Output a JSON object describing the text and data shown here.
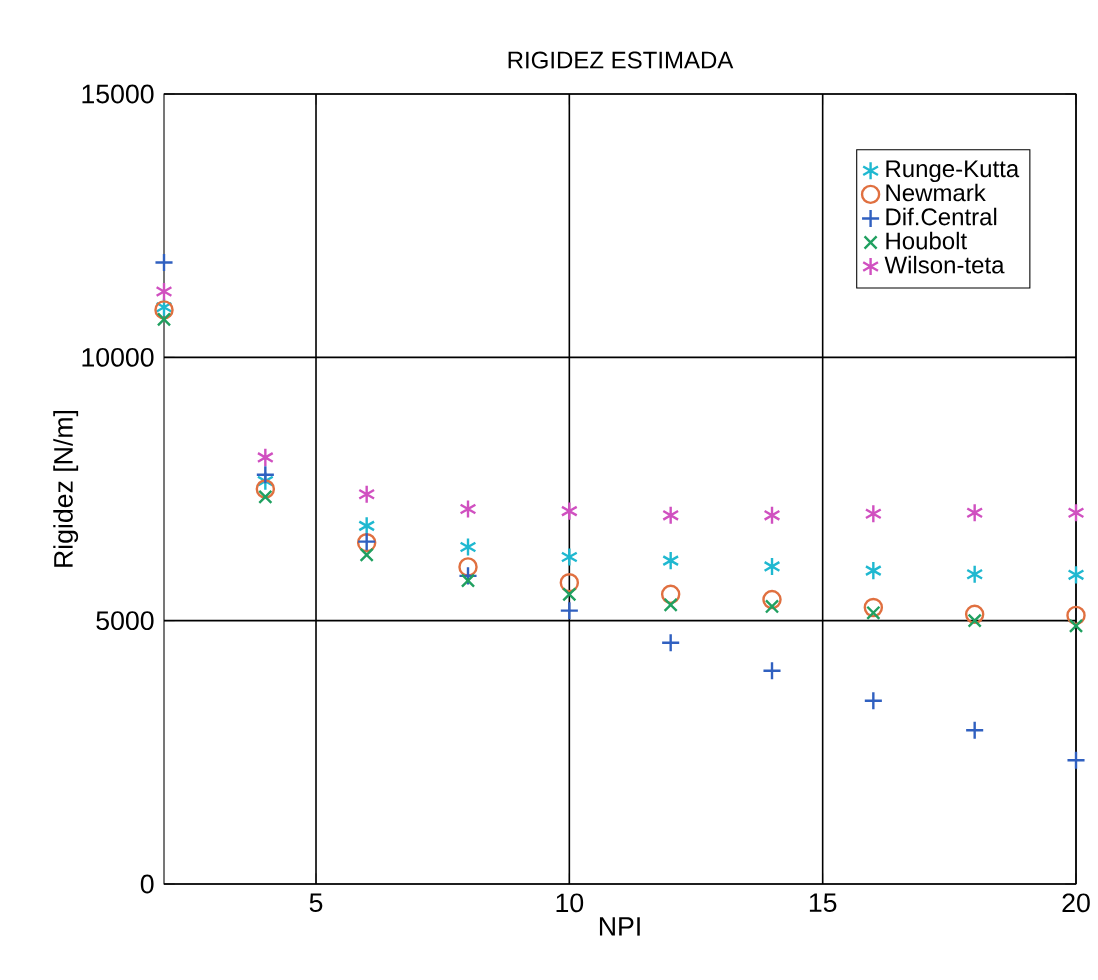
{
  "chart_data": {
    "type": "scatter",
    "title": "RIGIDEZ ESTIMADA",
    "xlabel": "NPI",
    "ylabel": "Rigidez [N/m]",
    "x": [
      2,
      4,
      6,
      8,
      10,
      12,
      14,
      16,
      18,
      20
    ],
    "series": [
      {
        "name": "Runge-Kutta",
        "color": "#1fb8d0",
        "marker": "cross",
        "values": [
          10950,
          7650,
          6800,
          6400,
          6210,
          6140,
          6030,
          5950,
          5880,
          5870
        ]
      },
      {
        "name": "Newmark",
        "color": "#e07040",
        "marker": "circle",
        "values": [
          10900,
          7500,
          6480,
          6020,
          5720,
          5500,
          5400,
          5250,
          5120,
          5100
        ]
      },
      {
        "name": "Dif.Central",
        "color": "#3060c0",
        "marker": "plus",
        "values": [
          11800,
          7770,
          6500,
          5850,
          5190,
          4580,
          4050,
          3480,
          2920,
          2350
        ]
      },
      {
        "name": "Houbolt",
        "color": "#20a060",
        "marker": "x",
        "values": [
          10720,
          7350,
          6250,
          5760,
          5500,
          5300,
          5270,
          5150,
          5000,
          4900
        ]
      },
      {
        "name": "Wilson-teta",
        "color": "#d050c0",
        "marker": "cross",
        "values": [
          11250,
          8100,
          7400,
          7120,
          7080,
          7000,
          7000,
          7030,
          7050,
          7050
        ]
      }
    ],
    "xlim": [
      2,
      20
    ],
    "xticks": [
      5,
      10,
      15,
      20
    ],
    "ylim": [
      0,
      15000
    ],
    "yticks": [
      0,
      5000,
      10000,
      15000
    ],
    "grid": true,
    "legend": "top right"
  }
}
